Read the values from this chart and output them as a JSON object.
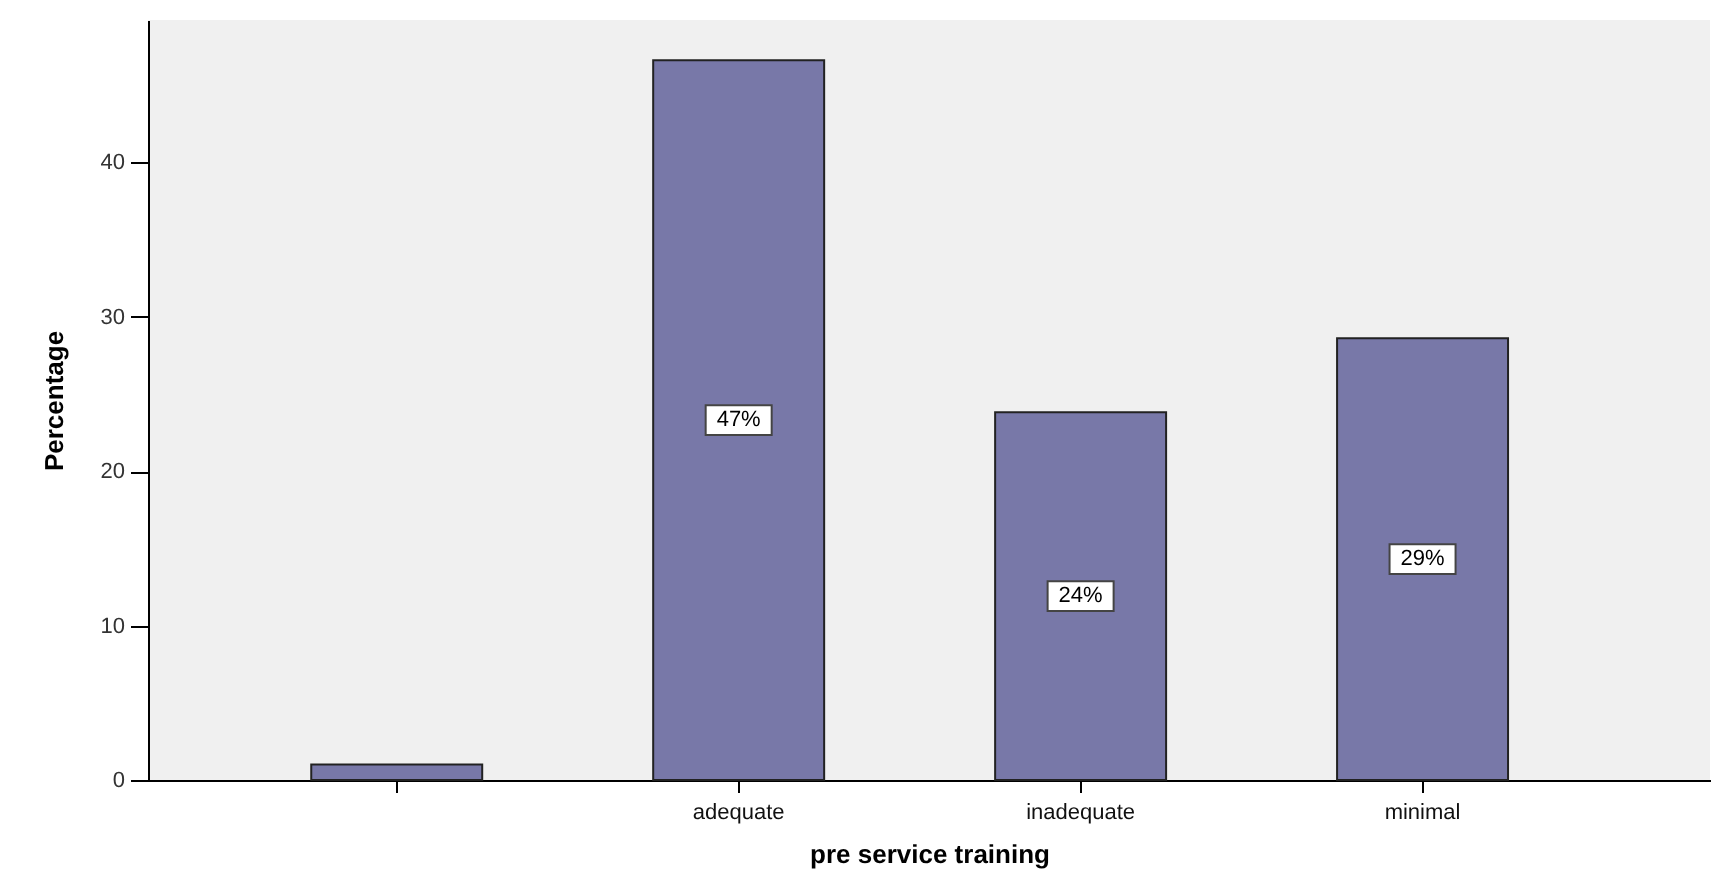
{
  "chart_data": {
    "type": "bar",
    "xlabel": "pre service training",
    "ylabel": "Percentage",
    "categories": [
      null,
      "adequate",
      "inadequate",
      "minimal"
    ],
    "values": [
      1,
      46.6,
      23.8,
      28.6
    ],
    "value_labels": [
      null,
      "47%",
      "24%",
      "29%"
    ],
    "color": "#7878a8",
    "ylim": [
      0,
      49.2
    ],
    "yticks": [
      0,
      10,
      20,
      30,
      40
    ]
  }
}
